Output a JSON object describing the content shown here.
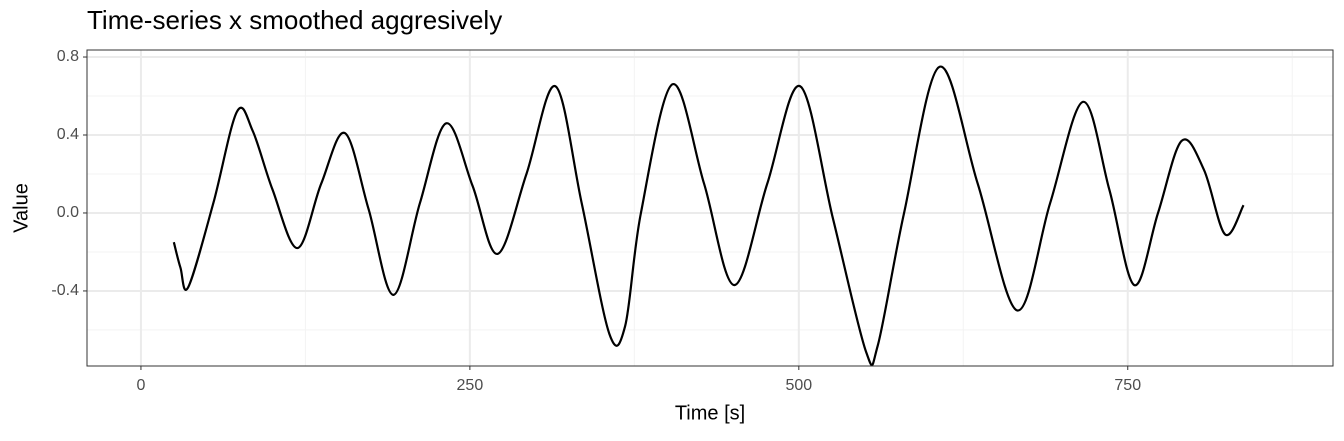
{
  "chart_data": {
    "type": "line",
    "title": "Time-series x smoothed aggresively",
    "x_label": "Time [s]",
    "y_label": "Value",
    "xlim": [
      -41,
      906
    ],
    "ylim": [
      -0.785,
      0.836
    ],
    "xticks": [
      0,
      250,
      500,
      750
    ],
    "yticks": [
      {
        "value": -0.4,
        "label": "-0.4"
      },
      {
        "value": 0,
        "label": "0.0"
      },
      {
        "value": 0.4,
        "label": "0.4"
      },
      {
        "value": 0.8,
        "label": "0.8"
      }
    ],
    "x_minor_ticks": [
      125,
      375,
      625,
      875
    ],
    "y_minor_ticks": [
      -0.6,
      -0.2,
      0.2,
      0.6
    ],
    "grid": true,
    "series": [
      {
        "color": "#000000",
        "x": [
          25,
          30,
          36,
          55,
          73,
          85,
          100,
          119,
          137,
          155,
          173,
          192,
          212,
          232,
          252,
          271,
          293,
          315,
          335,
          356,
          368,
          380,
          404,
          428,
          451,
          476,
          501,
          526,
          551,
          560,
          580,
          607,
          636,
          666,
          691,
          716,
          736,
          755,
          773,
          791,
          808,
          824,
          838
        ],
        "values": [
          -0.15,
          -0.28,
          -0.38,
          0.05,
          0.52,
          0.42,
          0.12,
          -0.18,
          0.15,
          0.41,
          0.02,
          -0.42,
          0.05,
          0.46,
          0.14,
          -0.21,
          0.2,
          0.65,
          0.05,
          -0.62,
          -0.58,
          0.0,
          0.66,
          0.15,
          -0.37,
          0.15,
          0.65,
          -0.03,
          -0.71,
          -0.68,
          0.0,
          0.75,
          0.15,
          -0.5,
          0.05,
          0.57,
          0.12,
          -0.37,
          0.0,
          0.37,
          0.22,
          -0.11,
          0.04
        ]
      }
    ]
  }
}
